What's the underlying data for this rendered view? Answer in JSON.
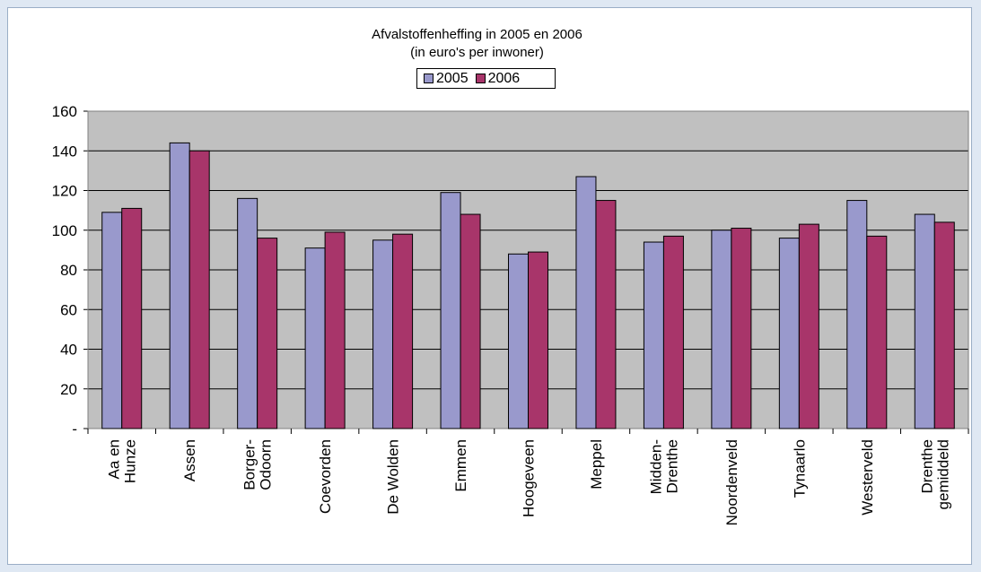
{
  "chart_data": {
    "type": "bar",
    "title": "Afvalstoffenheffing in 2005 en 2006",
    "subtitle": "(in euro's per inwoner)",
    "xlabel": "",
    "ylabel": "",
    "ylim": [
      0,
      160
    ],
    "yticks": [
      "-",
      "20",
      "40",
      "60",
      "80",
      "100",
      "120",
      "140",
      "160"
    ],
    "grid": true,
    "legend_position": "top-center",
    "categories": [
      [
        "Aa en",
        "Hunze"
      ],
      [
        "Assen"
      ],
      [
        "Borger-",
        "Odoorn"
      ],
      [
        "Coevorden"
      ],
      [
        "De Wolden"
      ],
      [
        "Emmen"
      ],
      [
        "Hoogeveen"
      ],
      [
        "Meppel"
      ],
      [
        "Midden-",
        "Drenthe"
      ],
      [
        "Noordenveld"
      ],
      [
        "Tynaarlo"
      ],
      [
        "Westerveld"
      ],
      [
        "Drenthe",
        "gemiddeld"
      ]
    ],
    "series": [
      {
        "name": "2005",
        "color": "#9999cc",
        "values": [
          109,
          144,
          116,
          91,
          95,
          119,
          88,
          127,
          94,
          100,
          96,
          115,
          108
        ]
      },
      {
        "name": "2006",
        "color": "#a8356a",
        "values": [
          111,
          140,
          96,
          99,
          98,
          108,
          89,
          115,
          97,
          101,
          103,
          97,
          104
        ]
      }
    ],
    "colors": {
      "plot_background": "#c0c0c0",
      "page_background": "#dfe8f3"
    }
  }
}
